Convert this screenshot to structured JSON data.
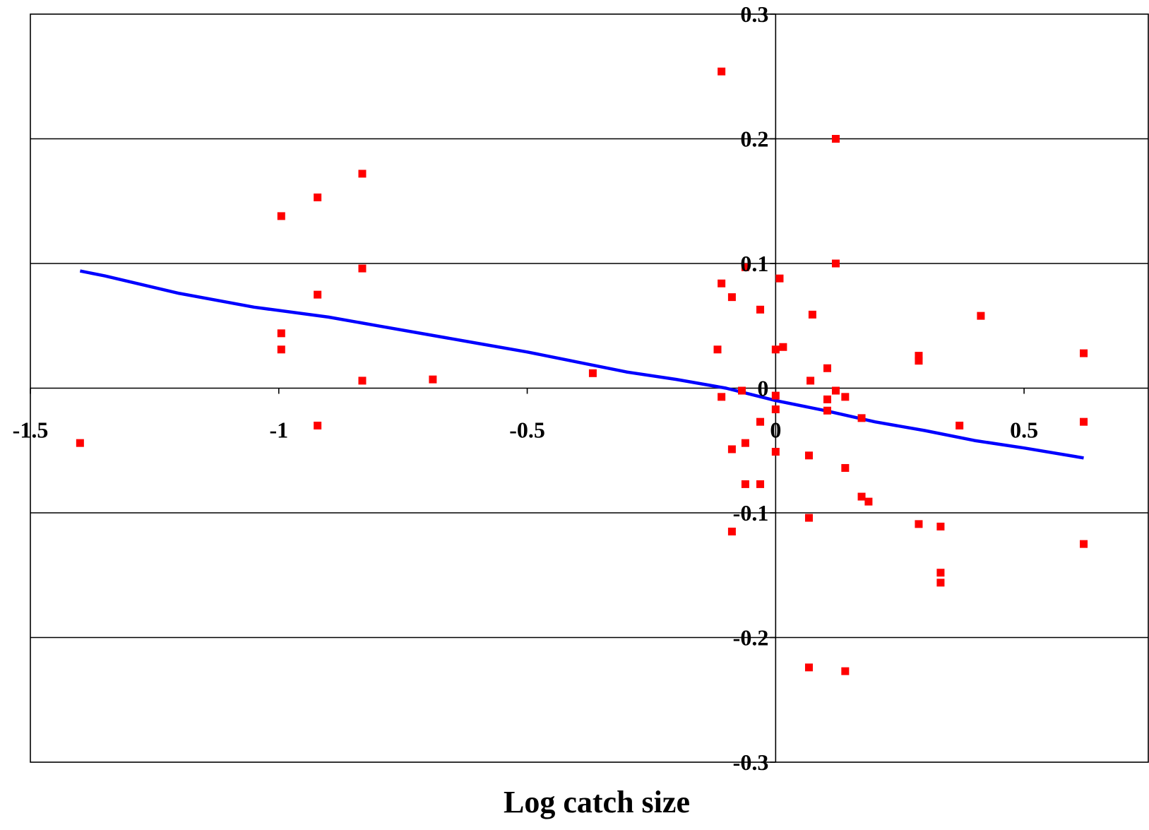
{
  "chart_data": {
    "type": "scatter",
    "title": "",
    "xlabel": "Log catch size",
    "ylabel": "",
    "xlim": [
      -1.5,
      0.75
    ],
    "ylim": [
      -0.3,
      0.3
    ],
    "grid": true,
    "x_ticks": [
      -1.5,
      -1,
      -0.5,
      0,
      0.5
    ],
    "x_tick_labels": [
      "-1.5",
      "-1",
      "-0.5",
      "0",
      "0.5"
    ],
    "y_ticks": [
      0.3,
      0.2,
      0.1,
      0,
      -0.1,
      -0.2,
      -0.3
    ],
    "y_tick_labels": [
      "0.3",
      "0.2",
      "0.1",
      "0",
      "-0.1",
      "-0.2",
      "-0.3"
    ],
    "colors": {
      "points": "#ff0000",
      "fit_line": "#0000ff",
      "axis": "#000000"
    },
    "series": [
      {
        "kind": "points",
        "values": [
          [
            -1.4,
            -0.044
          ],
          [
            -0.995,
            0.138
          ],
          [
            -0.995,
            0.044
          ],
          [
            -0.995,
            0.031
          ],
          [
            -0.922,
            0.153
          ],
          [
            -0.922,
            0.075
          ],
          [
            -0.922,
            -0.03
          ],
          [
            -0.832,
            0.172
          ],
          [
            -0.832,
            0.096
          ],
          [
            -0.832,
            0.006
          ],
          [
            -0.69,
            0.007
          ],
          [
            -0.368,
            0.012
          ],
          [
            -0.117,
            0.031
          ],
          [
            -0.109,
            0.254
          ],
          [
            -0.109,
            0.084
          ],
          [
            -0.109,
            -0.007
          ],
          [
            -0.088,
            0.073
          ],
          [
            -0.088,
            -0.049
          ],
          [
            -0.088,
            -0.115
          ],
          [
            -0.068,
            -0.002
          ],
          [
            -0.061,
            0.097
          ],
          [
            -0.061,
            -0.044
          ],
          [
            -0.061,
            -0.077
          ],
          [
            -0.031,
            0.063
          ],
          [
            -0.031,
            -0.027
          ],
          [
            -0.031,
            -0.077
          ],
          [
            0.0,
            -0.006
          ],
          [
            0.0,
            -0.017
          ],
          [
            0.0,
            -0.051
          ],
          [
            0.0,
            0.031
          ],
          [
            0.008,
            0.088
          ],
          [
            0.015,
            0.033
          ],
          [
            0.067,
            -0.054
          ],
          [
            0.067,
            -0.104
          ],
          [
            0.067,
            -0.224
          ],
          [
            0.07,
            0.006
          ],
          [
            0.074,
            0.059
          ],
          [
            0.104,
            0.016
          ],
          [
            0.104,
            -0.009
          ],
          [
            0.104,
            -0.018
          ],
          [
            0.121,
            0.2
          ],
          [
            0.121,
            0.1
          ],
          [
            0.121,
            -0.002
          ],
          [
            0.14,
            -0.007
          ],
          [
            0.14,
            -0.064
          ],
          [
            0.14,
            -0.227
          ],
          [
            0.173,
            -0.024
          ],
          [
            0.173,
            -0.087
          ],
          [
            0.187,
            -0.091
          ],
          [
            0.288,
            0.026
          ],
          [
            0.288,
            0.022
          ],
          [
            0.288,
            -0.109
          ],
          [
            0.332,
            -0.111
          ],
          [
            0.332,
            -0.148
          ],
          [
            0.332,
            -0.156
          ],
          [
            0.37,
            -0.03
          ],
          [
            0.413,
            0.058
          ],
          [
            0.62,
            0.028
          ],
          [
            0.62,
            -0.027
          ],
          [
            0.62,
            -0.125
          ]
        ]
      },
      {
        "kind": "line",
        "values": [
          [
            -1.4,
            0.094
          ],
          [
            -1.35,
            0.09
          ],
          [
            -1.2,
            0.076
          ],
          [
            -1.05,
            0.065
          ],
          [
            -0.9,
            0.057
          ],
          [
            -0.8,
            0.05
          ],
          [
            -0.7,
            0.043
          ],
          [
            -0.6,
            0.036
          ],
          [
            -0.5,
            0.029
          ],
          [
            -0.4,
            0.021
          ],
          [
            -0.3,
            0.013
          ],
          [
            -0.2,
            0.007
          ],
          [
            -0.1,
            0.0
          ],
          [
            0.0,
            -0.01
          ],
          [
            0.1,
            -0.018
          ],
          [
            0.2,
            -0.027
          ],
          [
            0.3,
            -0.034
          ],
          [
            0.4,
            -0.042
          ],
          [
            0.5,
            -0.048
          ],
          [
            0.62,
            -0.056
          ]
        ]
      }
    ]
  }
}
